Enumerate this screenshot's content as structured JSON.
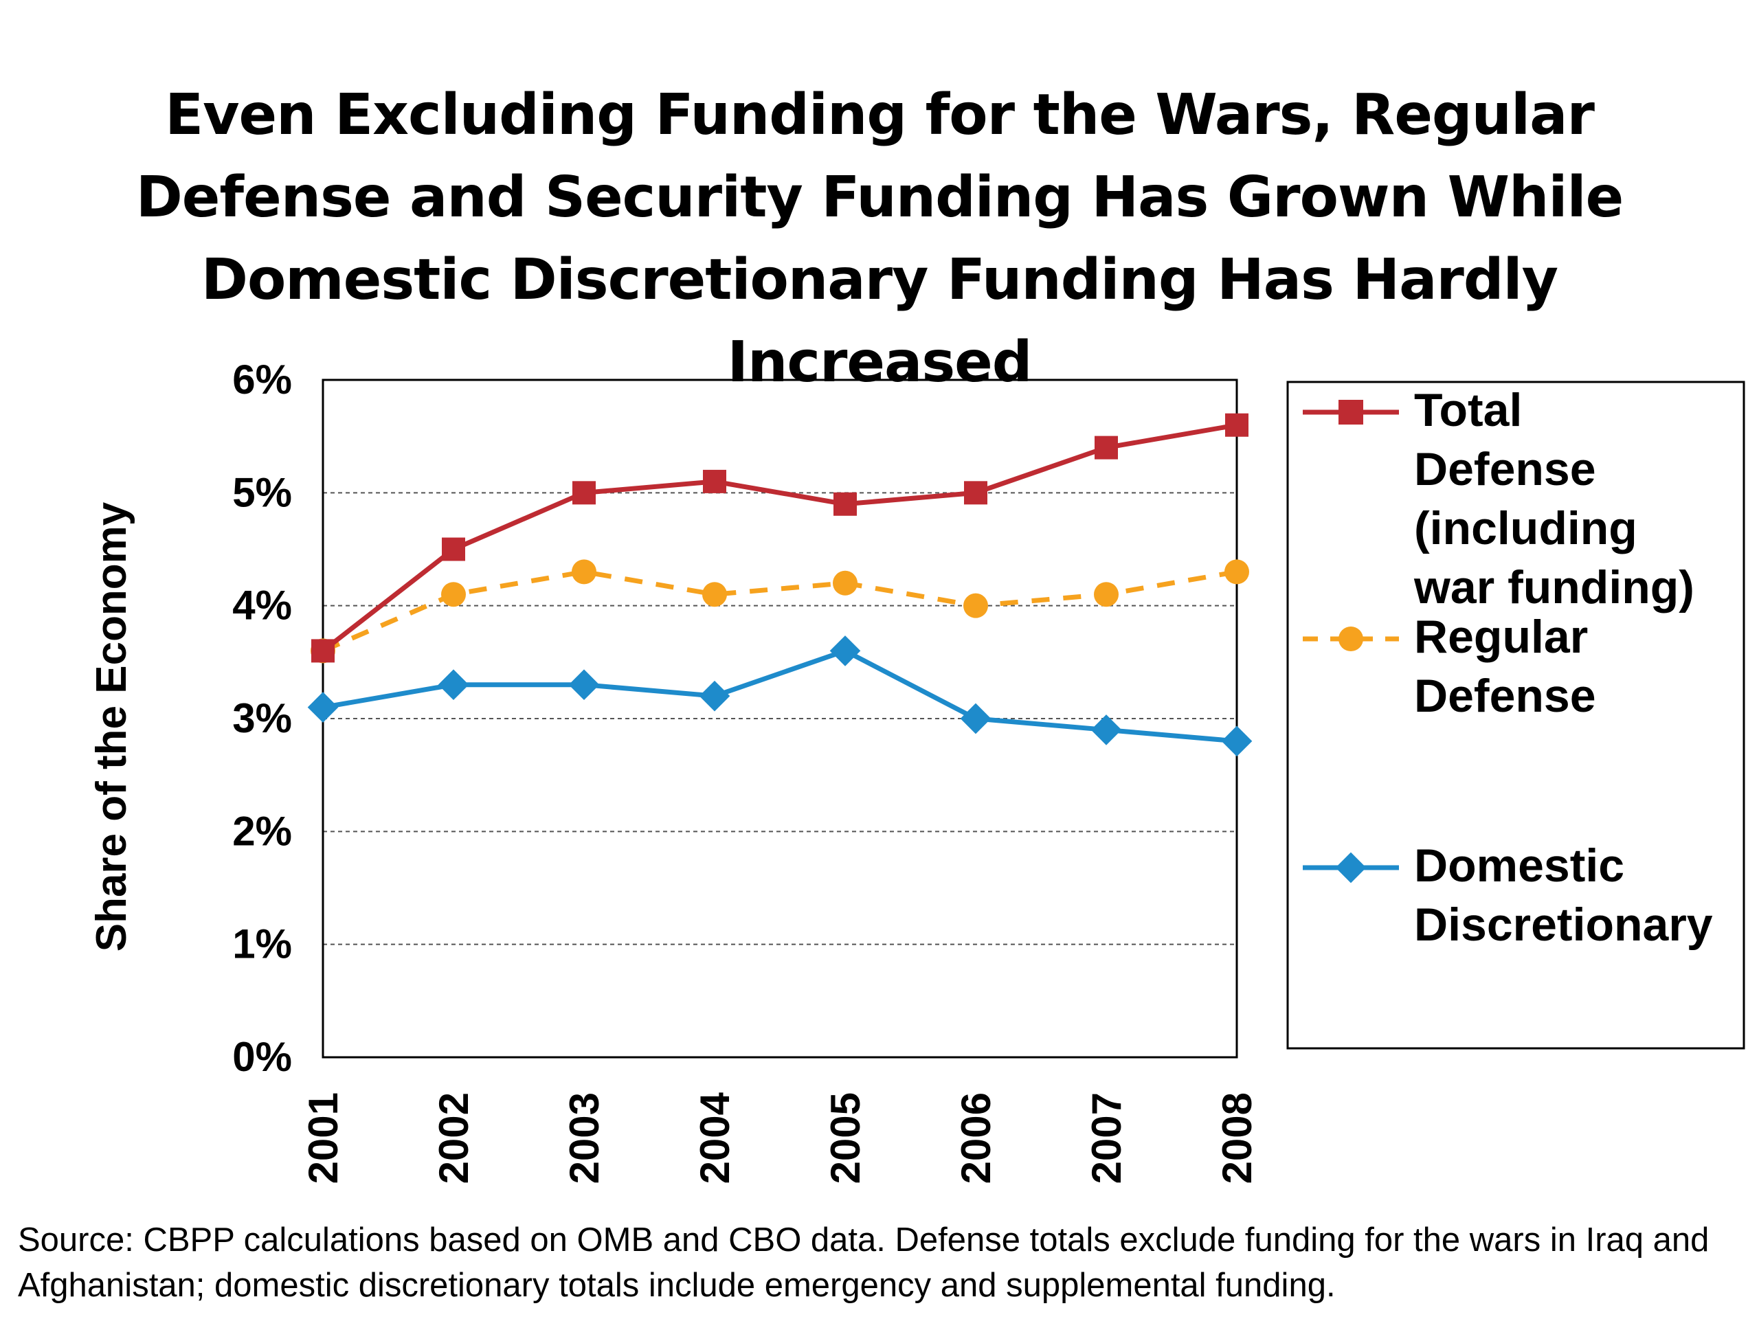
{
  "title": "Even Excluding Funding for the Wars, Regular Defense and Security Funding Has Grown While Domestic Discretionary Funding Has Hardly Increased",
  "source": "Source: CBPP calculations based on OMB and CBO data.  Defense totals exclude funding for the wars in Iraq and Afghanistan; domestic discretionary totals include emergency and supplemental funding.",
  "chart_data": {
    "type": "line",
    "ylabel": "Share of the Economy",
    "xlabel": "",
    "ylim": [
      0,
      6
    ],
    "y_ticks": [
      "0%",
      "1%",
      "2%",
      "3%",
      "4%",
      "5%",
      "6%"
    ],
    "categories": [
      "2001",
      "2002",
      "2003",
      "2004",
      "2005",
      "2006",
      "2007",
      "2008"
    ],
    "grid": "horizontal dashed",
    "legend_position": "right",
    "series": [
      {
        "name": "Total Defense (including war funding)",
        "legend_lines": [
          "Total",
          "Defense",
          "(including",
          "war funding)"
        ],
        "color": "#BE2B32",
        "marker": "square",
        "line": "solid",
        "values": [
          3.6,
          4.5,
          5.0,
          5.1,
          4.9,
          5.0,
          5.4,
          5.6
        ]
      },
      {
        "name": "Regular Defense",
        "legend_lines": [
          "Regular",
          "Defense"
        ],
        "color": "#F6A21E",
        "marker": "circle",
        "line": "dashed",
        "values": [
          3.6,
          4.1,
          4.3,
          4.1,
          4.2,
          4.0,
          4.1,
          4.3
        ]
      },
      {
        "name": "Domestic Discretionary",
        "legend_lines": [
          "Domestic",
          "Discretionary"
        ],
        "color": "#1E8BCB",
        "marker": "diamond",
        "line": "solid",
        "values": [
          3.1,
          3.3,
          3.3,
          3.2,
          3.6,
          3.0,
          2.9,
          2.8
        ]
      }
    ]
  }
}
